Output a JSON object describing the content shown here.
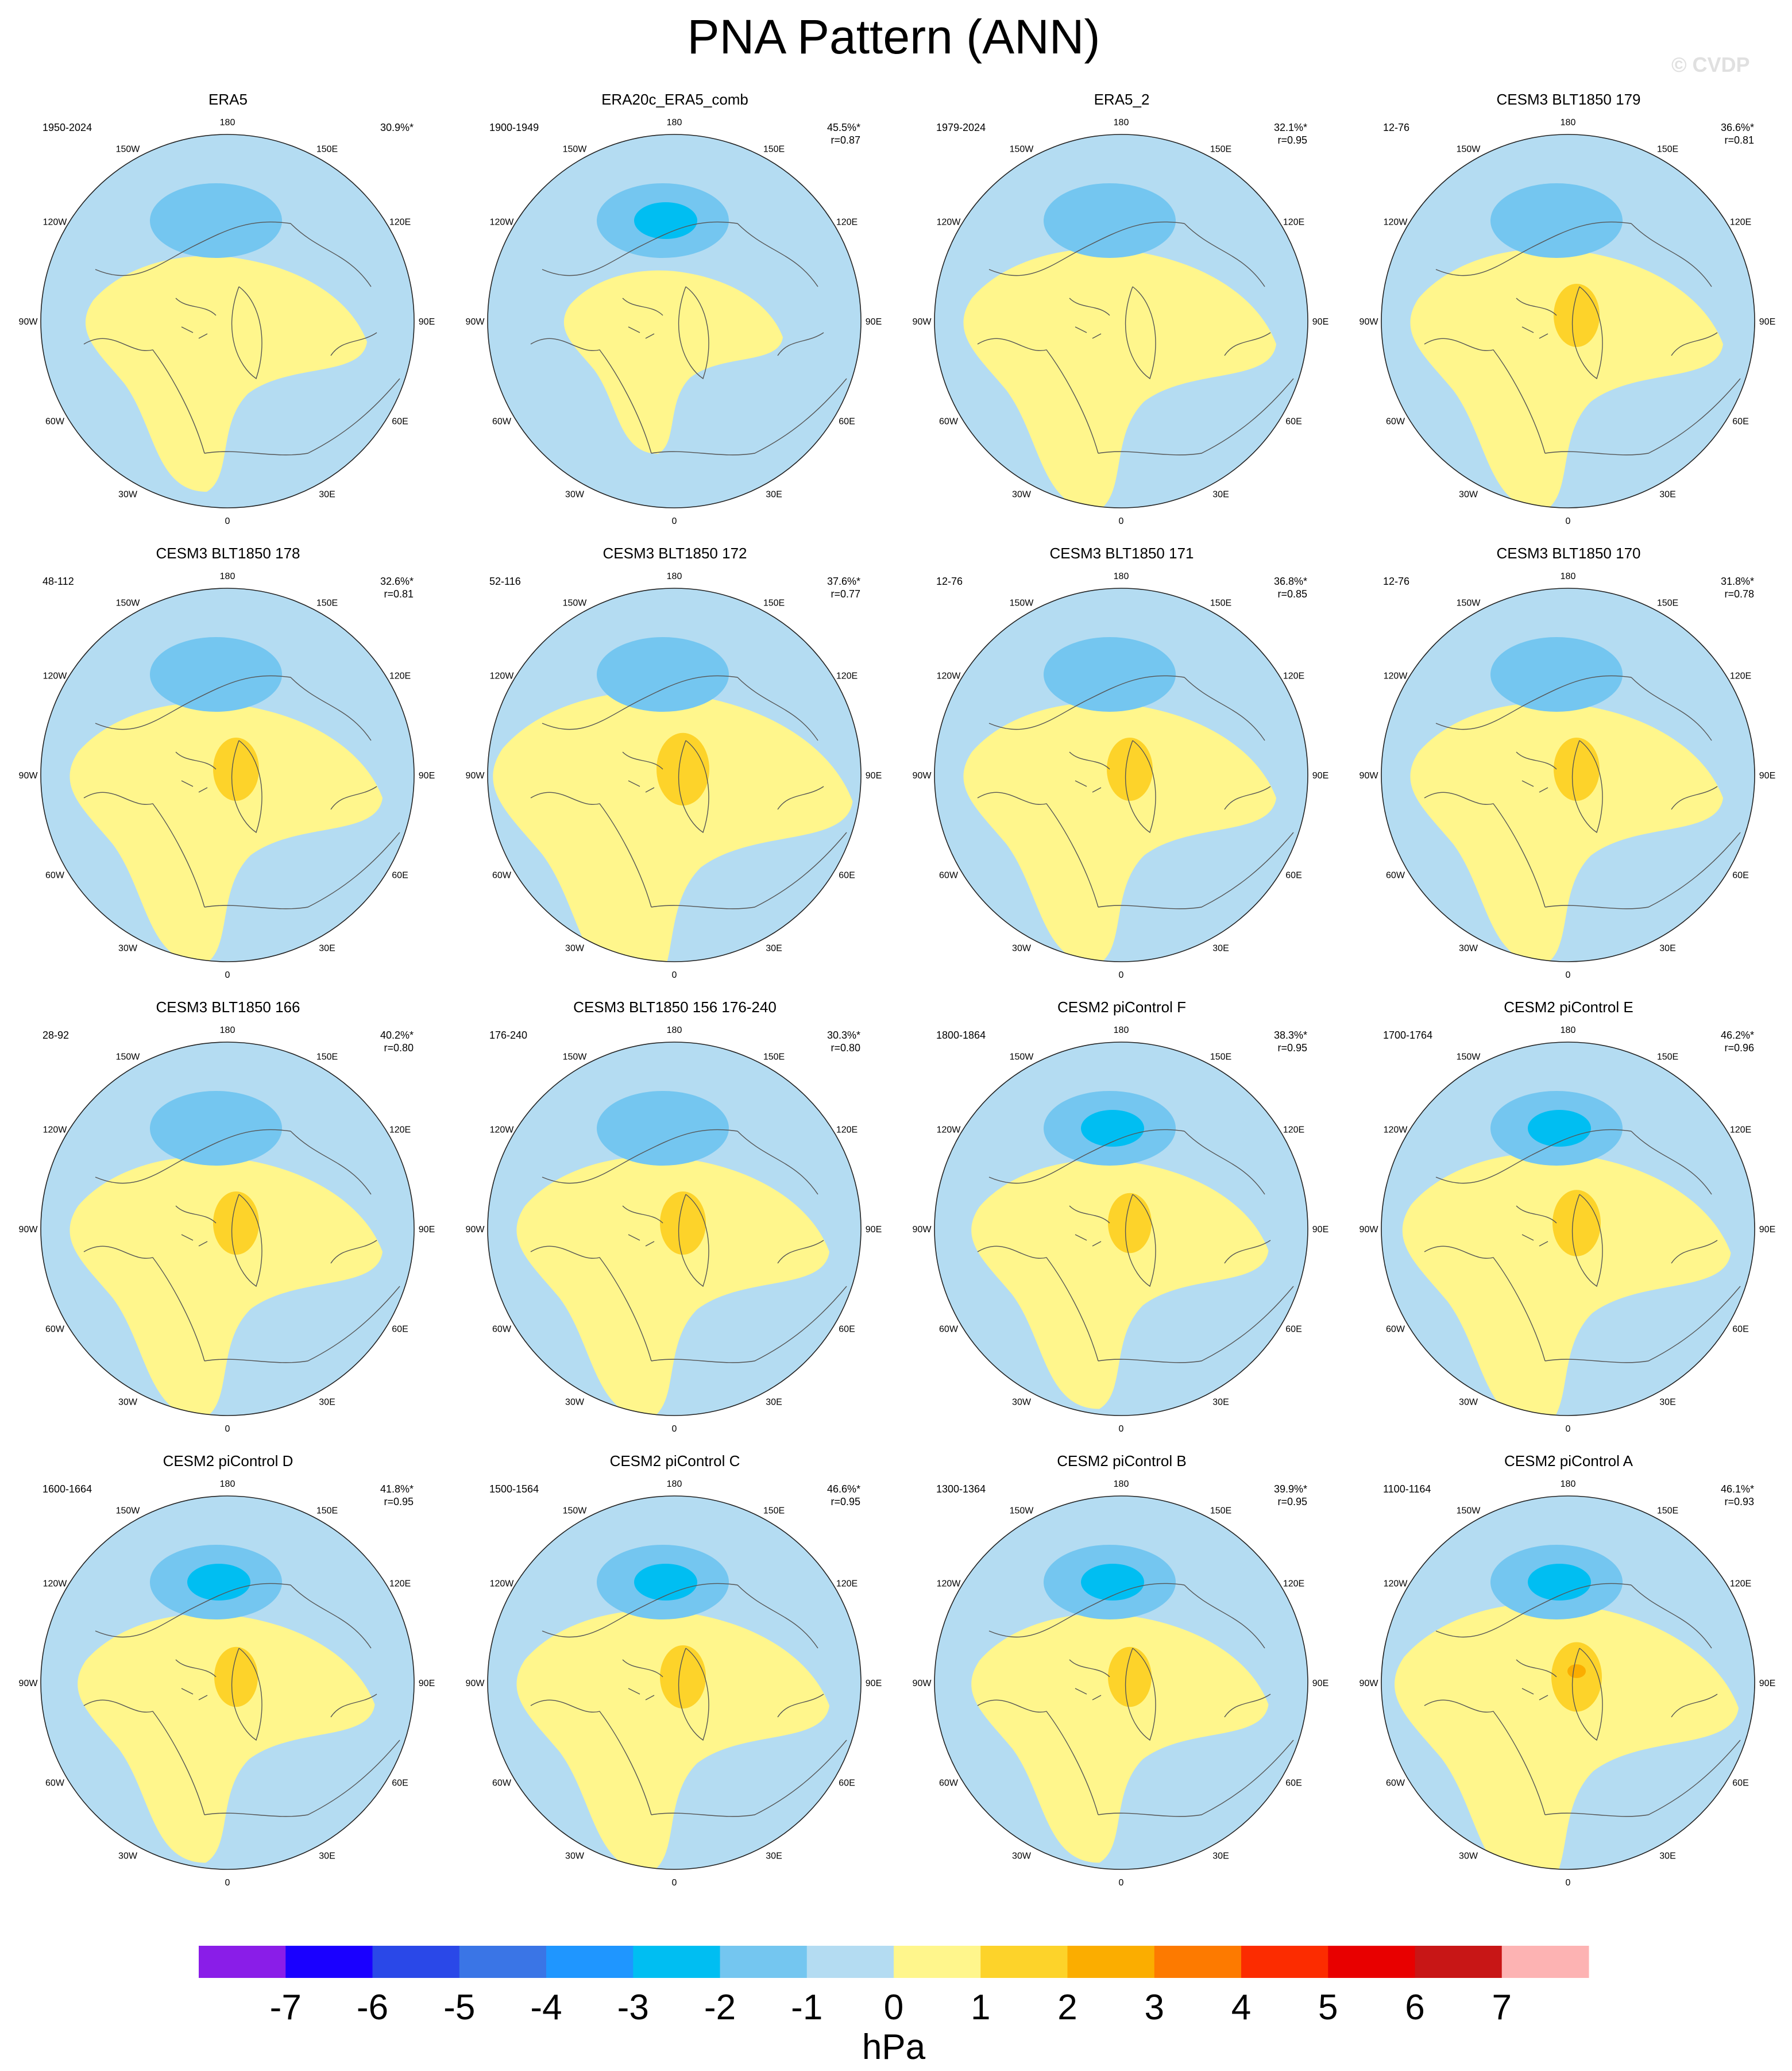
{
  "title": "PNA Pattern (ANN)",
  "watermark": "© CVDP",
  "colors": {
    "neg_light": "#b4dcf2",
    "neg_mid": "#74c6f0",
    "neg_strong": "#00bef2",
    "pos_light": "#fff68c",
    "pos_mid": "#fdd32a",
    "pos_strong": "#fbad00"
  },
  "longitude_labels": [
    "180",
    "150E",
    "120E",
    "90E",
    "60E",
    "30E",
    "0",
    "30W",
    "60W",
    "90W",
    "120W",
    "150W"
  ],
  "panels": [
    {
      "title": "ERA5",
      "years": "1950-2024",
      "pct": "30.9%*",
      "r": "",
      "low_intensity": 2,
      "high_intensity": 1,
      "high_size": 0.9
    },
    {
      "title": "ERA20c_ERA5_comb",
      "years": "1900-1949",
      "pct": "45.5%*",
      "r": "r=0.87",
      "low_intensity": 3,
      "high_intensity": 1,
      "high_size": 0.7
    },
    {
      "title": "ERA5_2",
      "years": "1979-2024",
      "pct": "32.1%*",
      "r": "r=0.95",
      "low_intensity": 2,
      "high_intensity": 1,
      "high_size": 1.0
    },
    {
      "title": "CESM3 BLT1850 179",
      "years": "12-76",
      "pct": "36.6%*",
      "r": "r=0.81",
      "low_intensity": 2,
      "high_intensity": 2,
      "high_size": 1.0
    },
    {
      "title": "CESM3 BLT1850 178",
      "years": "48-112",
      "pct": "32.6%*",
      "r": "r=0.81",
      "low_intensity": 2,
      "high_intensity": 2,
      "high_size": 1.0
    },
    {
      "title": "CESM3 BLT1850 172",
      "years": "52-116",
      "pct": "37.6%*",
      "r": "r=0.77",
      "low_intensity": 2,
      "high_intensity": 2,
      "high_size": 1.15
    },
    {
      "title": "CESM3 BLT1850 171",
      "years": "12-76",
      "pct": "36.8%*",
      "r": "r=0.85",
      "low_intensity": 2,
      "high_intensity": 2,
      "high_size": 1.0
    },
    {
      "title": "CESM3 BLT1850 170",
      "years": "12-76",
      "pct": "31.8%*",
      "r": "r=0.78",
      "low_intensity": 2,
      "high_intensity": 2,
      "high_size": 1.0
    },
    {
      "title": "CESM3 BLT1850 166",
      "years": "28-92",
      "pct": "40.2%*",
      "r": "r=0.80",
      "low_intensity": 2,
      "high_intensity": 2,
      "high_size": 1.0
    },
    {
      "title": "CESM3 BLT1850 156 176-240",
      "years": "176-240",
      "pct": "30.3%*",
      "r": "r=0.80",
      "low_intensity": 2,
      "high_intensity": 2,
      "high_size": 1.0
    },
    {
      "title": "CESM2 piControl F",
      "years": "1800-1864",
      "pct": "38.3%*",
      "r": "r=0.95",
      "low_intensity": 3,
      "high_intensity": 2,
      "high_size": 0.95
    },
    {
      "title": "CESM2 piControl E",
      "years": "1700-1764",
      "pct": "46.2%*",
      "r": "r=0.96",
      "low_intensity": 3,
      "high_intensity": 2,
      "high_size": 1.05
    },
    {
      "title": "CESM2 piControl D",
      "years": "1600-1664",
      "pct": "41.8%*",
      "r": "r=0.95",
      "low_intensity": 3,
      "high_intensity": 2,
      "high_size": 0.95
    },
    {
      "title": "CESM2 piControl C",
      "years": "1500-1564",
      "pct": "46.6%*",
      "r": "r=0.95",
      "low_intensity": 3,
      "high_intensity": 2,
      "high_size": 1.0
    },
    {
      "title": "CESM2 piControl B",
      "years": "1300-1364",
      "pct": "39.9%*",
      "r": "r=0.95",
      "low_intensity": 3,
      "high_intensity": 2,
      "high_size": 0.95
    },
    {
      "title": "CESM2 piControl A",
      "years": "1100-1164",
      "pct": "46.1%*",
      "r": "r=0.93",
      "low_intensity": 3,
      "high_intensity": 3,
      "high_size": 1.1
    }
  ],
  "colorbar": {
    "unit": "hPa",
    "tick_labels": [
      "-7",
      "-6",
      "-5",
      "-4",
      "-3",
      "-2",
      "-1",
      "0",
      "1",
      "2",
      "3",
      "4",
      "5",
      "6",
      "7"
    ],
    "colors": [
      "#8a1de8",
      "#1a00ff",
      "#2a48e8",
      "#3a75e6",
      "#1f96ff",
      "#00bef2",
      "#74c6f0",
      "#b4dcf2",
      "#fff68c",
      "#fdd32a",
      "#fbad00",
      "#fd7a00",
      "#fc2c00",
      "#e80000",
      "#c81616",
      "#fdb3b3"
    ]
  }
}
